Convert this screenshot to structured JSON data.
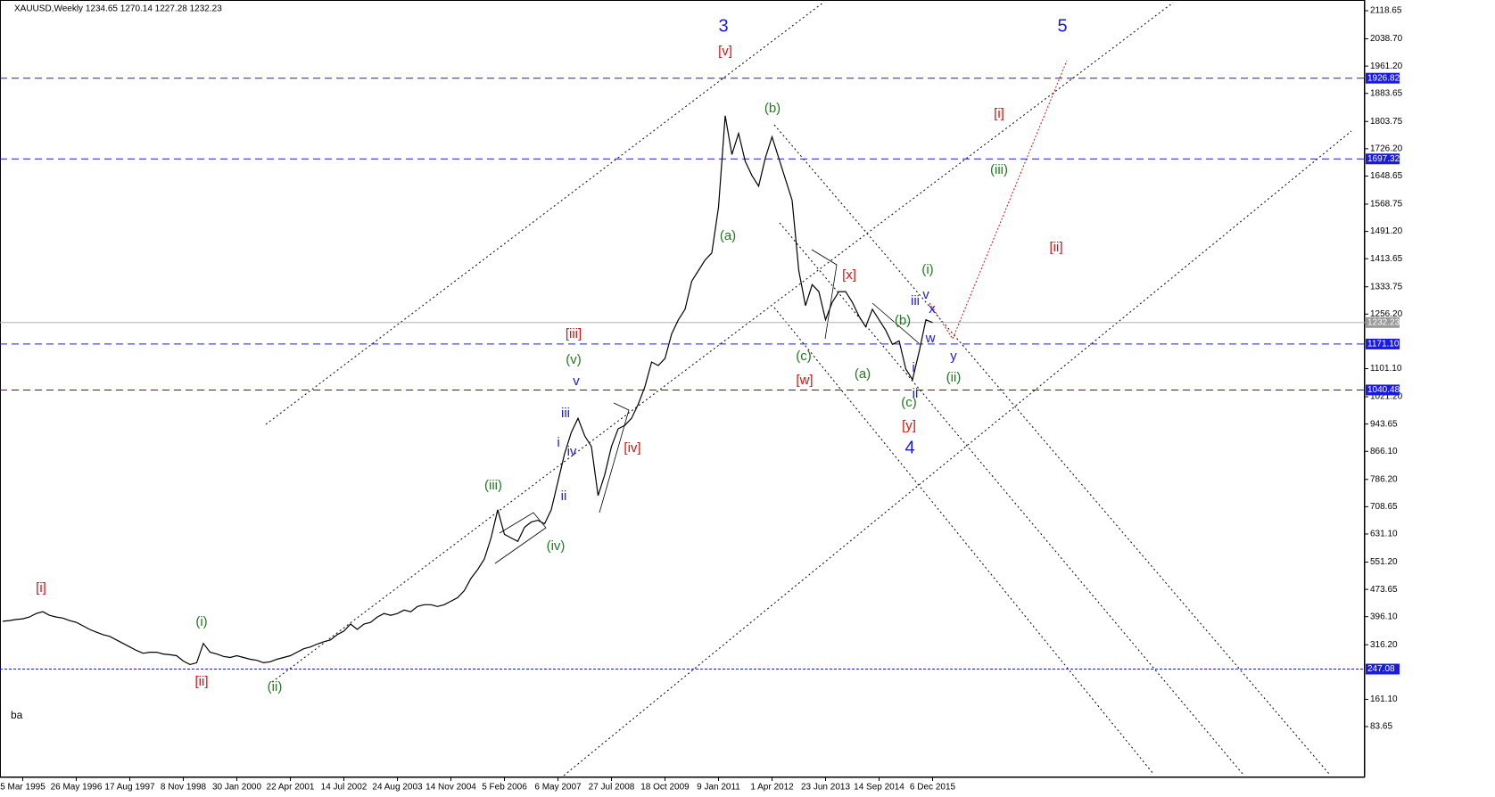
{
  "chart_data": {
    "type": "line",
    "title": "XAUUSD,Weekly  1234.65 1270.14 1227.28 1232.23",
    "corner_text": "ba",
    "color": "#000000",
    "categories": [
      null,
      null,
      null,
      "5 Mar 1995",
      null,
      null,
      null,
      null,
      null,
      null,
      null,
      "26 May 1996",
      null,
      null,
      null,
      null,
      null,
      null,
      null,
      "17 Aug 1997",
      null,
      null,
      null,
      null,
      null,
      null,
      null,
      "8 Nov 1998",
      null,
      null,
      null,
      null,
      null,
      null,
      null,
      "30 Jan 2000",
      null,
      null,
      null,
      null,
      null,
      null,
      null,
      "22 Apr 2001",
      null,
      null,
      null,
      null,
      null,
      null,
      null,
      "14 Jul 2002",
      null,
      null,
      null,
      null,
      null,
      null,
      null,
      "24 Aug 2003",
      null,
      null,
      null,
      null,
      null,
      null,
      null,
      "14 Nov 2004",
      null,
      null,
      null,
      null,
      null,
      null,
      null,
      "5 Feb 2006",
      null,
      null,
      null,
      null,
      null,
      null,
      null,
      "6 May 2007",
      null,
      null,
      null,
      null,
      null,
      null,
      null,
      "27 Jul 2008",
      null,
      null,
      null,
      null,
      null,
      null,
      null,
      "18 Oct 2009",
      null,
      null,
      null,
      null,
      null,
      null,
      null,
      "9 Jan 2011",
      null,
      null,
      null,
      null,
      null,
      null,
      null,
      "1 Apr 2012",
      null,
      null,
      null,
      null,
      null,
      null,
      null,
      "23 Jun 2013",
      null,
      null,
      null,
      null,
      null,
      null,
      null,
      "14 Sep 2014",
      null,
      null,
      null,
      null,
      null,
      null,
      null,
      "6 Dec 2015"
    ],
    "values": [
      383,
      385,
      388,
      390,
      395,
      405,
      410,
      400,
      395,
      392,
      385,
      380,
      370,
      360,
      352,
      345,
      340,
      330,
      320,
      310,
      300,
      292,
      295,
      295,
      290,
      288,
      285,
      270,
      260,
      265,
      320,
      295,
      290,
      283,
      280,
      285,
      280,
      275,
      272,
      265,
      268,
      275,
      280,
      285,
      295,
      305,
      310,
      318,
      325,
      330,
      345,
      355,
      375,
      360,
      375,
      380,
      395,
      405,
      400,
      405,
      415,
      410,
      425,
      430,
      430,
      425,
      430,
      440,
      450,
      470,
      505,
      530,
      560,
      620,
      700,
      630,
      620,
      610,
      650,
      665,
      670,
      660,
      700,
      780,
      860,
      920,
      960,
      910,
      880,
      740,
      800,
      880,
      930,
      940,
      960,
      1000,
      1050,
      1120,
      1110,
      1130,
      1200,
      1240,
      1270,
      1350,
      1380,
      1410,
      1430,
      1560,
      1820,
      1710,
      1770,
      1690,
      1650,
      1620,
      1700,
      1760,
      1700,
      1640,
      1580,
      1380,
      1280,
      1340,
      1320,
      1240,
      1290,
      1320,
      1320,
      1290,
      1250,
      1220,
      1270,
      1240,
      1210,
      1170,
      1180,
      1100,
      1070,
      1150,
      1240,
      1232.23
    ],
    "ylim": [
      -60.8,
      2136.4
    ],
    "yticks": [
      2118.65,
      {
        "value": 2038.7,
        "label": "2038.70"
      },
      {
        "value": 1961.2,
        "label": "1961.20"
      },
      1883.65,
      1803.75,
      {
        "value": 1726.2,
        "label": "1726.20"
      },
      1648.65,
      1568.75,
      {
        "value": 1491.2,
        "label": "1491.20"
      },
      1413.65,
      1333.75,
      {
        "value": 1256.2,
        "label": "1256.20"
      },
      {
        "value": 1101.1,
        "label": "1101.10"
      },
      {
        "value": 1021.2,
        "label": "1021.20"
      },
      943.65,
      {
        "value": 866.1,
        "label": "866.10"
      },
      {
        "value": 786.2,
        "label": "786.20"
      },
      708.65,
      {
        "value": 631.1,
        "label": "631.10"
      },
      {
        "value": 551.2,
        "label": "551.20"
      },
      473.65,
      {
        "value": 396.1,
        "label": "396.10"
      },
      {
        "value": 316.2,
        "label": "316.20"
      },
      {
        "value": 161.1,
        "label": "161.10"
      },
      83.65
    ],
    "levels": [
      1926.82,
      1697.32,
      {
        "value": 1171.1,
        "label": "1171.10"
      },
      1040.48,
      247.08
    ],
    "level_color": "#1a1ae6",
    "current_price": 1232.23,
    "annotations": [
      {
        "text": "3",
        "color": "#1a1ae6"
      },
      {
        "text": "5",
        "color": "#1a1ae6"
      },
      {
        "text": "[v]",
        "color": "#e01010"
      },
      {
        "text": "(b)",
        "color": "#1f7a1f"
      },
      {
        "text": "[i]",
        "color": "#e01010"
      },
      {
        "text": "(iii)",
        "color": "#1f7a1f"
      },
      {
        "text": "(a)",
        "color": "#1f7a1f"
      },
      {
        "text": "[ii]",
        "color": "#e01010"
      },
      {
        "text": "[x]",
        "color": "#e01010"
      },
      {
        "text": "(i)",
        "color": "#1f7a1f"
      },
      {
        "text": "iii",
        "color": "#1a1ae6"
      },
      {
        "text": "v",
        "color": "#1a1ae6"
      },
      {
        "text": "x",
        "color": "#1a1ae6"
      },
      {
        "text": "(b)",
        "color": "#1f7a1f"
      },
      {
        "text": "w",
        "color": "#1a1ae6"
      },
      {
        "text": "y",
        "color": "#1a1ae6"
      },
      {
        "text": "i",
        "color": "#1a1ae6"
      },
      {
        "text": "[iii]",
        "color": "#e01010"
      },
      {
        "text": "(v)",
        "color": "#1f7a1f"
      },
      {
        "text": "(c)",
        "color": "#1f7a1f"
      },
      {
        "text": "(a)",
        "color": "#1f7a1f"
      },
      {
        "text": "(ii)",
        "color": "#1f7a1f"
      },
      {
        "text": "[w]",
        "color": "#e01010"
      },
      {
        "text": "v",
        "color": "#1a1ae6"
      },
      {
        "text": "ii",
        "color": "#1a1ae6"
      },
      {
        "text": "(c)",
        "color": "#1f7a1f"
      },
      {
        "text": "iii",
        "color": "#1a1ae6"
      },
      {
        "text": "[y]",
        "color": "#e01010"
      },
      {
        "text": "i",
        "color": "#1a1ae6"
      },
      {
        "text": "iv",
        "color": "#1a1ae6"
      },
      {
        "text": "[iv]",
        "color": "#e01010"
      },
      {
        "text": "4",
        "color": "#1a1ae6"
      },
      {
        "text": "ii",
        "color": "#1a1ae6"
      },
      {
        "text": "(iii)",
        "color": "#1f7a1f"
      },
      {
        "text": "(iv)",
        "color": "#1f7a1f"
      },
      {
        "text": "[i]",
        "color": "#e01010"
      },
      {
        "text": "(i)",
        "color": "#1f7a1f"
      },
      {
        "text": "[ii]",
        "color": "#e01010"
      },
      {
        "text": "(ii)",
        "color": "#1f7a1f"
      }
    ]
  }
}
